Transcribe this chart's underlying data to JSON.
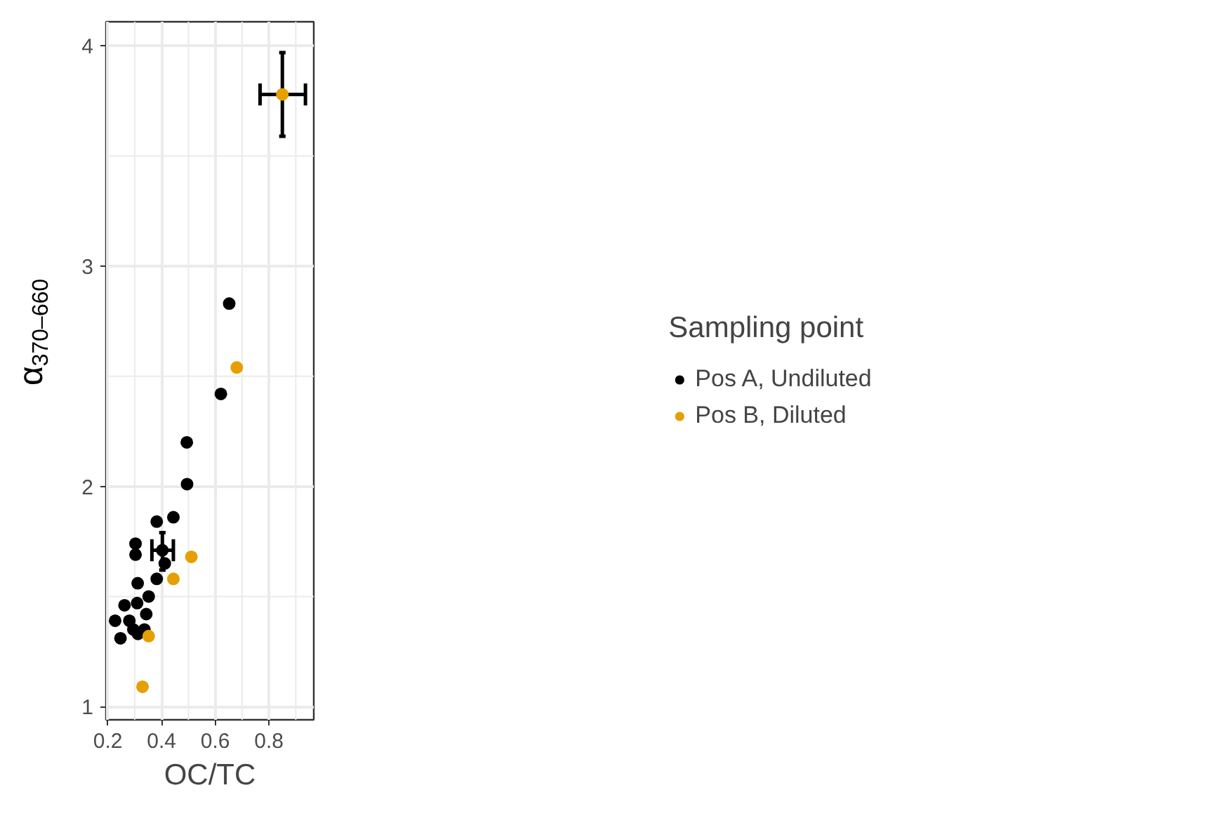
{
  "chart_data": {
    "type": "scatter",
    "xlabel": "OC/TC",
    "ylabel": "α$_{370–660}$",
    "legend_title": "Sampling point",
    "legend": "right",
    "grid": true,
    "marker": "circle",
    "xlim": [
      0.193,
      0.967
    ],
    "ylim": [
      0.94,
      4.11
    ],
    "xticks": [
      0.2,
      0.4,
      0.6,
      0.8
    ],
    "yticks": [
      1,
      2,
      3,
      4
    ],
    "series": [
      {
        "name": "Pos A, Undiluted",
        "color": "#000000",
        "x": [
          0.227,
          0.247,
          0.262,
          0.28,
          0.295,
          0.303,
          0.303,
          0.311,
          0.309,
          0.312,
          0.336,
          0.343,
          0.352,
          0.382,
          0.382,
          0.403,
          0.412,
          0.444,
          0.495,
          0.494,
          0.621,
          0.652
        ],
        "values": [
          1.39,
          1.31,
          1.46,
          1.39,
          1.35,
          1.74,
          1.69,
          1.56,
          1.47,
          1.33,
          1.35,
          1.42,
          1.5,
          1.84,
          1.58,
          1.71,
          1.65,
          1.86,
          2.01,
          2.2,
          2.42,
          2.83
        ],
        "errors": [
          null,
          null,
          null,
          null,
          null,
          null,
          null,
          null,
          null,
          null,
          null,
          null,
          null,
          null,
          null,
          [
            1.62,
            1.79
          ],
          null,
          null,
          null,
          null,
          null,
          null
        ],
        "xerrors": [
          null,
          null,
          null,
          null,
          null,
          null,
          null,
          null,
          null,
          null,
          null,
          null,
          null,
          null,
          null,
          [
            0.364,
            0.444
          ],
          null,
          null,
          null,
          null,
          null,
          null
        ]
      },
      {
        "name": "Pos B, Diluted",
        "color": "#e69f00",
        "x": [
          0.329,
          0.352,
          0.444,
          0.511,
          0.68,
          0.85
        ],
        "values": [
          1.09,
          1.32,
          1.58,
          1.68,
          2.54,
          3.78
        ],
        "errors": [
          null,
          null,
          null,
          null,
          null,
          [
            3.59,
            3.97
          ]
        ],
        "xerrors": [
          null,
          null,
          null,
          null,
          null,
          [
            0.767,
            0.936
          ]
        ]
      }
    ]
  }
}
